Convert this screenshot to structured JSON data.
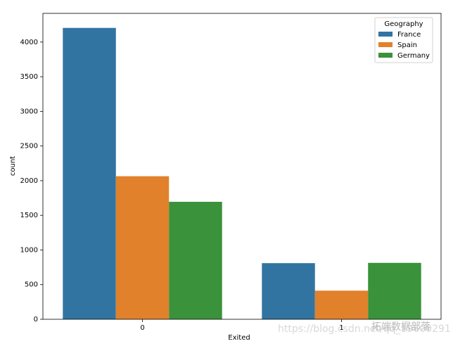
{
  "chart_data": {
    "type": "bar",
    "x_label": "Exited",
    "y_label": "count",
    "categories": [
      "0",
      "1"
    ],
    "series": [
      {
        "name": "France",
        "color": "#3274a1",
        "values": [
          4204,
          810
        ]
      },
      {
        "name": "Spain",
        "color": "#e1812c",
        "values": [
          2064,
          413
        ]
      },
      {
        "name": "Germany",
        "color": "#3a923a",
        "values": [
          1695,
          814
        ]
      }
    ],
    "ylim": [
      0,
      4414
    ],
    "yticks": [
      0,
      500,
      1000,
      1500,
      2000,
      2500,
      3000,
      3500,
      4000
    ],
    "legend_title": "Geography",
    "legend": "upper right",
    "watermark": [
      "https://blog.csdn.net/qq_19600291",
      "拓端数据部落"
    ]
  }
}
